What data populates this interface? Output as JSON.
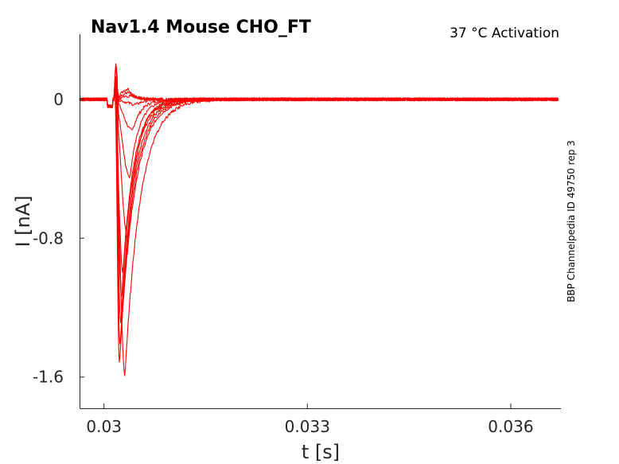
{
  "chart_data": {
    "type": "line",
    "title": "Nav1.4  Mouse  CHO_FT",
    "subtitle": "37 °C  Activation",
    "side_note": "BBP Channelpedia ID 49750 rep 3",
    "xlabel": "t [s]",
    "ylabel": "I [nA]",
    "xlim": [
      0.02964,
      0.03674
    ],
    "ylim": [
      -1.78,
      0.375
    ],
    "xticks": [
      0.03,
      0.033,
      0.036
    ],
    "xtick_labels": [
      "0.03",
      "0.033",
      "0.036"
    ],
    "yticks": [
      0,
      -0.8,
      -1.6
    ],
    "ytick_labels": [
      "0",
      "-0.8",
      "-1.6"
    ],
    "grid": false,
    "line_color": "#ff0000",
    "series_peaks": [
      {
        "peak": 0.06,
        "t_peak": 0.03035
      },
      {
        "peak": 0.04,
        "t_peak": 0.03038
      },
      {
        "peak": 0.02,
        "t_peak": 0.03042
      },
      {
        "peak": -0.03,
        "t_peak": 0.03048
      },
      {
        "peak": -0.18,
        "t_peak": 0.03042
      },
      {
        "peak": -0.45,
        "t_peak": 0.03038
      },
      {
        "peak": -0.8,
        "t_peak": 0.03035
      },
      {
        "peak": -1.0,
        "t_peak": 0.03028
      },
      {
        "peak": -1.15,
        "t_peak": 0.03026
      },
      {
        "peak": -1.3,
        "t_peak": 0.03025
      },
      {
        "peak": -1.42,
        "t_peak": 0.03024
      },
      {
        "peak": -1.52,
        "t_peak": 0.03023
      },
      {
        "peak": -1.59,
        "t_peak": 0.03031
      }
    ]
  }
}
